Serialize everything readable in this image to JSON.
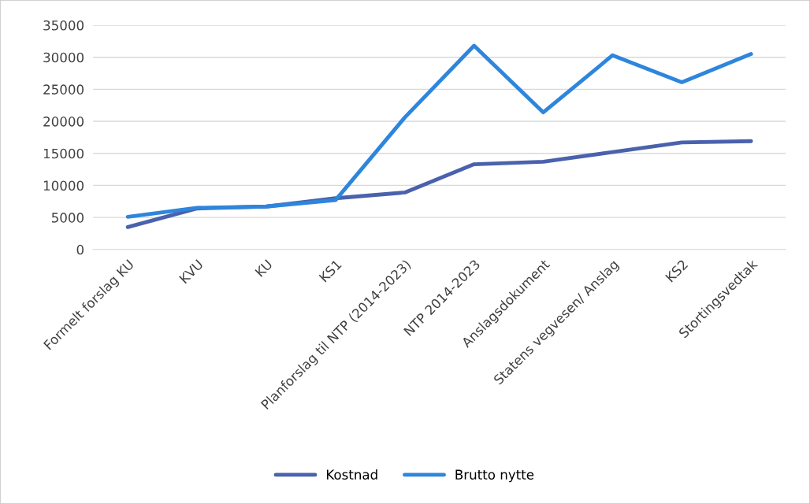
{
  "chart_data": {
    "type": "line",
    "categories": [
      "Formelt forslag KU",
      "KVU",
      "KU",
      "KS1",
      "Planforslag til NTP (2014-2023)",
      "NTP 2014-2023",
      "Anslagsdokument",
      "Statens vegvesen/ Anslag",
      "KS2",
      "Stortingsvedtak"
    ],
    "series": [
      {
        "name": "Kostnad",
        "color": "#4a62ad",
        "values": [
          3500,
          6400,
          6700,
          8000,
          8900,
          13300,
          13700,
          15200,
          16700,
          16900
        ]
      },
      {
        "name": "Brutto nytte",
        "color": "#2e86dc",
        "values": [
          5100,
          6500,
          6700,
          7700,
          20600,
          31800,
          21400,
          30300,
          26100,
          30500
        ]
      }
    ],
    "ylim": [
      0,
      35000
    ],
    "yticks": [
      0,
      5000,
      10000,
      15000,
      20000,
      25000,
      30000,
      35000
    ],
    "grid": "y",
    "legend": "bottom",
    "marker": "none",
    "line_style": "solid"
  }
}
